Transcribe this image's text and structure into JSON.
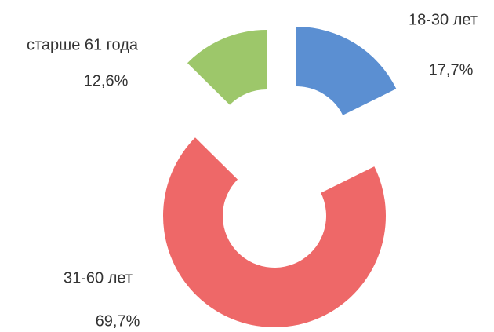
{
  "chart_data": {
    "type": "donut",
    "categories": [
      "18-30 лет",
      "31-60 лет",
      "старше 61 года"
    ],
    "values": [
      17.7,
      69.7,
      12.6
    ],
    "value_labels": [
      "17,7%",
      "69,7%",
      "12,6%"
    ],
    "colors": [
      "#5b8fd2",
      "#ee6868",
      "#9dc76a"
    ]
  }
}
